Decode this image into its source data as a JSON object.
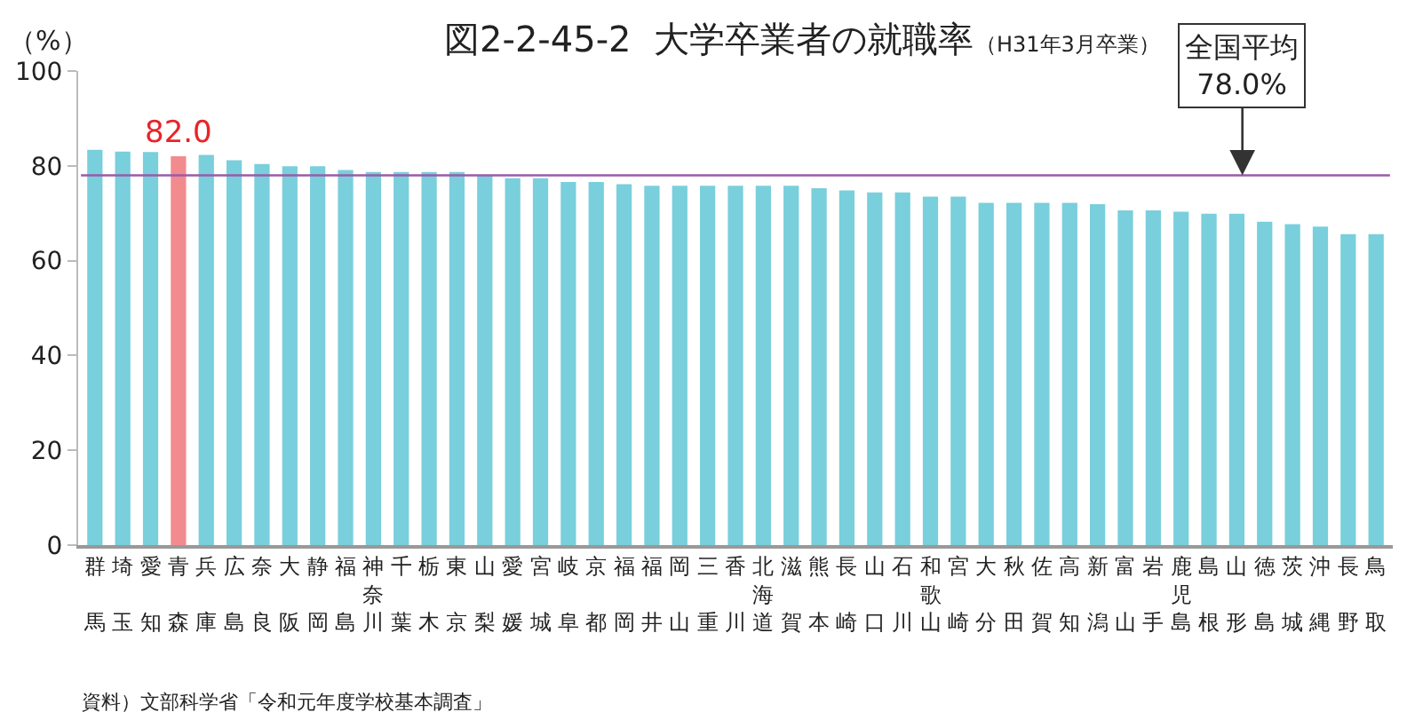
{
  "chart_data": {
    "type": "bar",
    "title": "図2-2-45-2  大学卒業者の就職率",
    "subtitle": "（H31年3月卒業）",
    "ylabel": "（%）",
    "categories": [
      "群馬",
      "埼玉",
      "愛知",
      "青森",
      "兵庫",
      "広島",
      "奈良",
      "大阪",
      "静岡",
      "福島",
      "神奈川",
      "千葉",
      "栃木",
      "東京",
      "山梨",
      "愛媛",
      "宮城",
      "岐阜",
      "京都",
      "福岡",
      "福井",
      "岡山",
      "三重",
      "香川",
      "北海道",
      "滋賀",
      "熊本",
      "長崎",
      "山口",
      "石川",
      "和歌山",
      "宮崎",
      "大分",
      "秋田",
      "佐賀",
      "高知",
      "新潟",
      "富山",
      "岩手",
      "鹿児島",
      "島根",
      "山形",
      "徳島",
      "茨城",
      "沖縄",
      "長野",
      "鳥取"
    ],
    "values": [
      83.4,
      83.0,
      82.9,
      82.0,
      82.3,
      81.2,
      80.4,
      79.9,
      79.9,
      79.1,
      78.7,
      78.7,
      78.7,
      78.7,
      78.1,
      77.4,
      77.4,
      76.6,
      76.6,
      76.1,
      75.8,
      75.8,
      75.8,
      75.8,
      75.8,
      75.8,
      75.3,
      74.8,
      74.4,
      74.4,
      73.5,
      73.5,
      72.2,
      72.2,
      72.2,
      72.2,
      71.9,
      70.6,
      70.6,
      70.3,
      69.9,
      69.9,
      68.2,
      67.7,
      67.2,
      65.6,
      65.6
    ],
    "colors": [
      "#79cfdc",
      "#79cfdc",
      "#79cfdc",
      "#f28b8e",
      "#79cfdc",
      "#79cfdc",
      "#79cfdc",
      "#79cfdc",
      "#79cfdc",
      "#79cfdc",
      "#79cfdc",
      "#79cfdc",
      "#79cfdc",
      "#79cfdc",
      "#79cfdc",
      "#79cfdc",
      "#79cfdc",
      "#79cfdc",
      "#79cfdc",
      "#79cfdc",
      "#79cfdc",
      "#79cfdc",
      "#79cfdc",
      "#79cfdc",
      "#79cfdc",
      "#79cfdc",
      "#79cfdc",
      "#79cfdc",
      "#79cfdc",
      "#79cfdc",
      "#79cfdc",
      "#79cfdc",
      "#79cfdc",
      "#79cfdc",
      "#79cfdc",
      "#79cfdc",
      "#79cfdc",
      "#79cfdc",
      "#79cfdc",
      "#79cfdc",
      "#79cfdc",
      "#79cfdc",
      "#79cfdc",
      "#79cfdc",
      "#79cfdc",
      "#79cfdc",
      "#79cfdc"
    ],
    "value_labels": [
      null,
      null,
      null,
      "82.0",
      null,
      null,
      null,
      null,
      null,
      null,
      null,
      null,
      null,
      null,
      null,
      null,
      null,
      null,
      null,
      null,
      null,
      null,
      null,
      null,
      null,
      null,
      null,
      null,
      null,
      null,
      null,
      null,
      null,
      null,
      null,
      null,
      null,
      null,
      null,
      null,
      null,
      null,
      null,
      null,
      null,
      null,
      null
    ],
    "ylim": [
      0,
      100
    ],
    "yticks": [
      0,
      20,
      40,
      60,
      80,
      100
    ],
    "ref_lines": [
      {
        "axis": "y",
        "value": 78.0,
        "label": "全国平均\n78.0%",
        "color": "#9b5aa8"
      }
    ],
    "annotations": [
      "資料）文部科学省「令和元年度学校基本調査」"
    ]
  }
}
